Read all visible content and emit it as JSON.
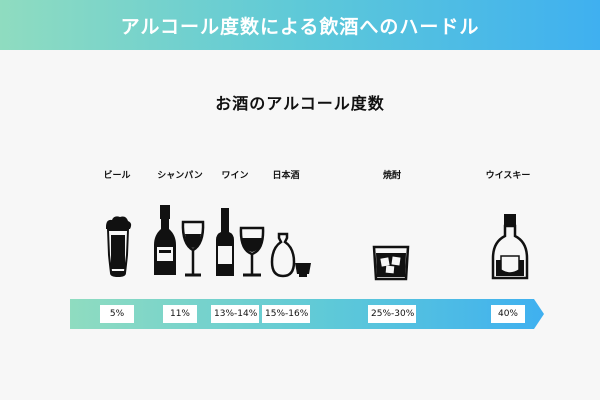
{
  "header": {
    "title": "アルコール度数による飲酒へのハードル"
  },
  "main": {
    "title": "お酒のアルコール度数"
  },
  "drinks": [
    {
      "label": "ビール",
      "percent": "5%"
    },
    {
      "label": "シャンパン",
      "percent": "11%"
    },
    {
      "label": "ワイン",
      "percent": "13%-14%"
    },
    {
      "label": "日本酒",
      "percent": "15%-16%"
    },
    {
      "label": "焼酎",
      "percent": "25%-30%"
    },
    {
      "label": "ウイスキー",
      "percent": "40%"
    }
  ],
  "icons": [
    "beer-mug-icon",
    "champagne-bottle-icon",
    "champagne-glass-icon",
    "wine-bottle-icon",
    "wine-glass-icon",
    "sake-flask-icon",
    "sake-cup-icon",
    "rock-glass-icon",
    "whisky-bottle-icon"
  ],
  "colors": {
    "gradient_start": "#8fdcc0",
    "gradient_end": "#3fb0f0",
    "icon": "#111111"
  }
}
